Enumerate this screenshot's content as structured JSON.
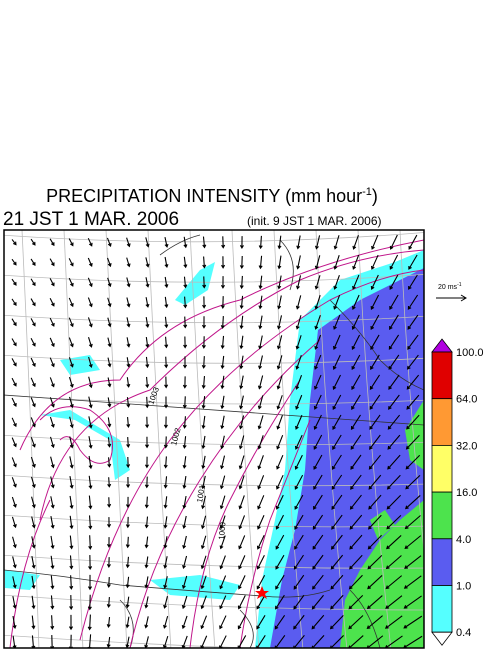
{
  "header": {
    "title": "PRECIPITATION INTENSITY (mm hour",
    "title_sup": "-1",
    "title_end": ")",
    "valid_time": "21 JST 1 MAR. 2006",
    "init_time": "(init. 9 JST 1 MAR. 2006)"
  },
  "wind_legend": {
    "label": "20 ms",
    "label_sup": "-1"
  },
  "contour_labels": [
    "1003",
    "1002",
    "1001",
    "1000"
  ],
  "colorbar": {
    "labels": [
      "100.0",
      "64.0",
      "32.0",
      "16.0",
      "4.0",
      "1.0",
      "0.4"
    ]
  }
}
